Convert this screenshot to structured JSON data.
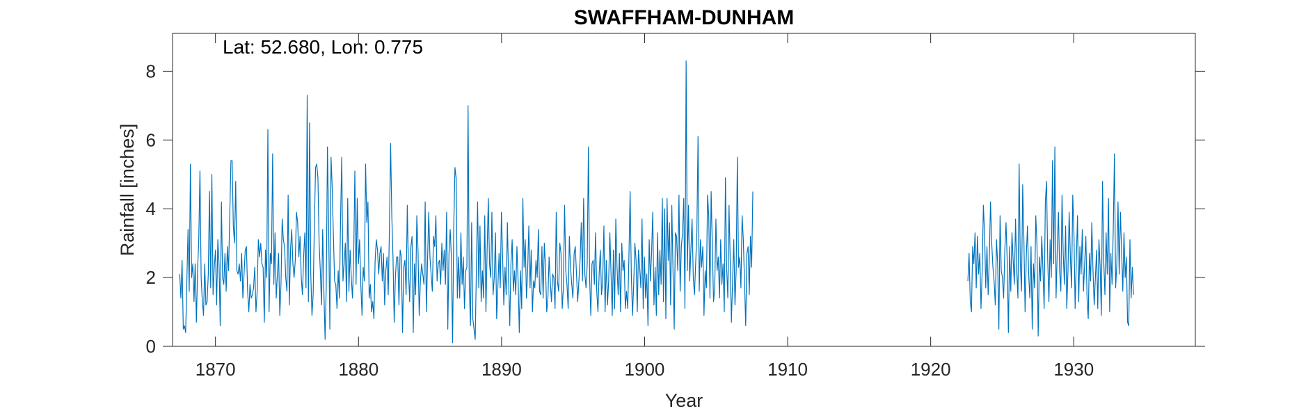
{
  "chart_data": {
    "type": "line",
    "title": "SWAFFHAM-DUNHAM",
    "annotation": "Lat: 52.680, Lon: 0.775",
    "xlabel": "Year",
    "ylabel": "Rainfall [inches]",
    "xlim": [
      1867.0,
      1938.5
    ],
    "ylim": [
      0,
      9.1
    ],
    "xticks": [
      1870,
      1880,
      1890,
      1900,
      1910,
      1920,
      1930
    ],
    "yticks": [
      0,
      2,
      4,
      6,
      8
    ],
    "xtick_labels": [
      "1870",
      "1880",
      "1890",
      "1900",
      "1910",
      "1920",
      "1930"
    ],
    "ytick_labels": [
      "0",
      "2",
      "4",
      "6",
      "8"
    ],
    "grid": false,
    "series": [
      {
        "color": "#0072BD",
        "segments": [
          {
            "start_year": 1867.5,
            "step_years": 0.0833,
            "values": [
              2.1,
              1.4,
              2.5,
              0.5,
              0.6,
              0.4,
              1.9,
              3.4,
              1.6,
              5.3,
              2.0,
              2.4,
              1.3,
              2.4,
              0.7,
              2.2,
              3.1,
              5.1,
              2.0,
              1.3,
              0.9,
              2.4,
              1.2,
              1.3,
              2.1,
              4.5,
              1.7,
              5.0,
              1.5,
              2.3,
              2.8,
              1.2,
              3.1,
              2.4,
              0.6,
              4.2,
              2.0,
              1.8,
              2.7,
              1.6,
              2.9,
              2.2,
              3.8,
              5.4,
              5.4,
              3.5,
              3.0,
              4.8,
              2.2,
              2.1,
              2.4,
              1.9,
              2.7,
              1.4,
              2.1,
              2.8,
              2.9,
              1.6,
              1.0,
              1.8,
              1.4,
              1.5,
              1.7,
              2.3,
              1.0,
              1.6,
              3.1,
              2.6,
              3.0,
              2.4,
              2.3,
              0.7,
              2.8,
              2.0,
              6.3,
              1.0,
              2.7,
              2.4,
              5.6,
              1.8,
              3.3,
              1.4,
              2.1,
              2.7,
              0.9,
              1.8,
              3.7,
              3.1,
              2.9,
              2.0,
              1.6,
              4.4,
              1.2,
              2.8,
              3.4,
              2.4,
              2.0,
              2.5,
              3.9,
              3.6,
              2.6,
              3.2,
              2.0,
              1.5,
              2.6,
              3.3,
              1.7,
              7.3,
              1.3,
              6.5,
              2.1,
              0.9,
              1.5,
              3.5,
              5.2,
              5.3,
              4.9,
              3.0,
              2.2,
              1.2,
              3.4,
              1.6,
              0.2,
              1.8,
              5.8,
              3.5,
              0.5,
              5.5,
              4.6,
              3.2,
              1.9,
              1.8,
              1.1,
              2.2,
              1.4,
              3.7,
              5.5,
              1.9,
              2.4,
              3.0,
              1.3,
              4.3,
              1.6,
              2.8,
              2.0,
              1.4,
              2.6,
              5.1,
              1.8,
              4.3,
              2.4,
              3.1,
              1.8,
              0.9,
              2.3,
              1.9,
              5.3,
              3.6,
              4.2,
              1.4,
              1.8,
              1.0,
              1.3,
              0.8,
              2.5,
              3.1,
              2.8,
              2.1,
              2.7,
              2.9,
              1.9,
              2.7,
              1.2,
              2.2,
              2.6,
              1.5,
              3.4,
              5.9,
              3.8,
              2.6,
              0.7,
              2.0,
              2.6,
              2.6,
              1.2,
              2.8,
              2.6,
              0.4,
              2.3,
              2.5,
              1.5,
              4.1,
              2.2,
              1.3,
              2.9,
              3.2,
              0.4,
              2.4,
              1.5,
              3.8,
              2.8,
              0.9,
              1.9,
              2.4,
              2.1,
              1.8,
              4.2,
              1.0,
              2.5,
              3.9,
              2.6,
              2.1,
              1.6,
              3.2,
              2.9,
              3.8,
              1.9,
              2.4,
              2.5,
              1.8,
              3.0,
              2.2,
              2.8,
              1.8,
              3.9,
              0.5,
              2.7,
              3.4,
              2.6,
              0.1,
              3.5,
              5.2,
              4.9,
              1.4,
              2.6,
              1.4,
              3.3,
              1.8,
              2.6,
              1.1,
              2.2,
              2.3,
              7.0,
              1.8,
              0.6,
              3.6,
              0.8,
              0.5,
              0.2,
              2.3,
              4.2,
              1.7,
              3.5,
              1.3,
              2.2,
              1.4,
              3.8,
              1.0,
              2.8,
              4.3,
              2.4,
              2.0,
              3.9,
              1.5,
              2.0,
              3.3,
              0.8,
              1.7,
              2.7,
              1.7,
              3.9,
              2.6,
              1.2,
              2.3,
              1.5,
              3.6,
              2.0,
              0.6,
              2.4,
              3.1,
              1.6,
              2.2,
              1.5,
              2.9,
              1.9,
              0.4,
              2.2,
              1.1,
              4.3,
              2.3,
              3.1,
              1.4,
              2.2,
              3.5,
              1.7,
              2.8,
              1.0,
              1.9,
              1.7,
              2.5,
              2.0,
              3.4,
              1.6,
              1.5,
              2.9,
              1.4,
              3.0,
              2.3,
              1.0,
              1.4,
              2.6,
              1.9,
              1.3,
              2.1,
              2.0,
              1.1,
              3.9,
              1.9,
              1.6,
              3.0,
              2.7,
              1.1,
              1.7,
              4.1,
              2.2,
              1.8,
              1.1,
              3.2,
              2.3,
              1.8,
              1.4,
              2.7,
              2.9,
              2.1,
              1.3,
              1.9,
              2.5,
              3.6,
              1.9,
              4.3,
              2.1,
              1.7,
              2.4,
              5.8,
              2.0,
              0.9,
              2.4,
              2.5,
              1.8,
              3.3,
              1.6,
              1.0,
              2.1,
              2.8,
              1.5,
              1.9,
              3.5,
              1.0,
              2.5,
              1.2,
              1.9,
              3.3,
              2.1,
              0.9,
              2.8,
              1.1,
              3.7,
              2.3,
              1.5,
              2.7,
              1.0,
              3.0,
              2.2,
              2.5,
              1.1,
              1.6,
              1.1,
              2.6,
              4.5,
              2.1,
              0.9,
              1.8,
              3.0,
              2.5,
              1.0,
              2.8,
              2.3,
              1.7,
              3.7,
              1.1,
              2.6,
              1.4,
              2.1,
              0.6,
              3.1,
              1.9,
              2.7,
              3.9,
              1.2,
              2.3,
              0.9,
              3.3,
              1.5,
              2.8,
              1.8,
              4.3,
              1.3,
              4.0,
              0.8,
              4.3,
              2.5,
              3.6,
              1.2,
              4.1,
              2.2,
              0.5,
              3.3,
              3.2,
              2.2,
              4.4,
              1.6,
              2.9,
              3.3,
              4.3,
              1.1,
              8.3,
              2.2,
              4.1,
              1.9,
              2.8,
              3.7,
              2.0,
              1.5,
              2.4,
              3.3,
              6.1,
              1.6,
              3.1,
              2.3,
              2.9,
              0.9,
              2.2,
              1.7,
              4.4,
              3.8,
              1.4,
              4.5,
              2.9,
              1.3,
              1.7,
              3.7,
              2.2,
              2.6,
              1.4,
              3.1,
              1.8,
              2.4,
              1.0,
              4.9,
              2.3,
              1.4,
              4.1,
              2.5,
              0.7,
              1.9,
              3.1,
              1.2,
              2.2,
              5.5,
              2.3,
              2.6,
              1.7,
              3.8,
              3.1,
              1.9,
              0.6,
              2.7,
              2.9,
              1.5,
              3.2,
              2.3,
              4.5
            ]
          },
          {
            "start_year": 1922.6,
            "step_years": 0.0833,
            "values": [
              1.9,
              2.7,
              1.3,
              1.0,
              2.9,
              2.4,
              3.3,
              1.7,
              3.2,
              2.1,
              2.7,
              1.1,
              2.2,
              4.1,
              3.3,
              1.7,
              2.9,
              1.5,
              2.6,
              4.2,
              3.0,
              2.3,
              1.9,
              1.2,
              3.1,
              2.4,
              0.5,
              3.8,
              2.2,
              2.0,
              1.4,
              2.8,
              3.6,
              2.5,
              0.4,
              2.9,
              1.6,
              3.3,
              2.5,
              1.8,
              3.7,
              2.2,
              1.4,
              5.3,
              2.4,
              1.6,
              4.7,
              3.1,
              1.0,
              2.6,
              3.5,
              2.1,
              1.4,
              2.9,
              0.5,
              2.4,
              1.7,
              3.8,
              2.9,
              0.3,
              2.6,
              1.9,
              3.2,
              2.2,
              1.1,
              4.2,
              4.8,
              2.5,
              1.3,
              3.1,
              2.0,
              5.4,
              2.4,
              5.8,
              1.4,
              2.8,
              3.9,
              2.2,
              1.6,
              4.4,
              2.7,
              1.8,
              3.5,
              1.1,
              2.2,
              3.9,
              2.6,
              1.7,
              4.4,
              3.3,
              1.1,
              2.5,
              3.8,
              1.3,
              2.9,
              2.1,
              3.4,
              1.6,
              2.4,
              3.2,
              1.4,
              0.8,
              2.7,
              1.9,
              3.6,
              2.2,
              1.2,
              2.0,
              2.8,
              1.1,
              3.1,
              2.3,
              0.9,
              4.8,
              2.5,
              1.5,
              3.3,
              2.1,
              4.3,
              1.0,
              2.7,
              1.8,
              3.4,
              5.6,
              1.7,
              2.4,
              4.2,
              2.1,
              3.9,
              2.8,
              1.6,
              3.3,
              2.0,
              2.6,
              0.7,
              0.6,
              3.1,
              1.4,
              2.3,
              1.5
            ]
          }
        ]
      }
    ]
  }
}
